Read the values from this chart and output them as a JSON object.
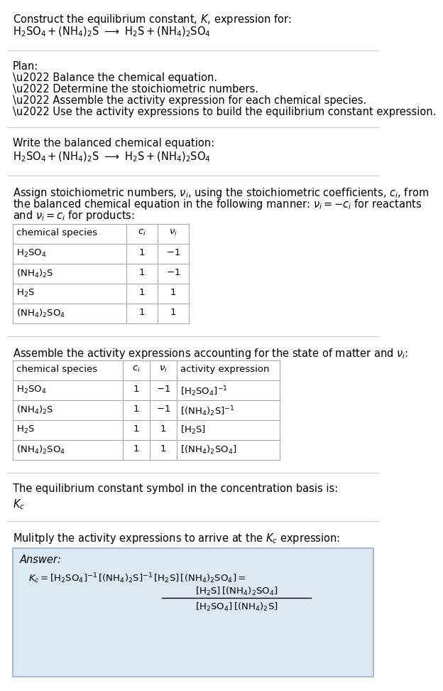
{
  "bg_color": "#ffffff",
  "text_color": "#000000",
  "title_line1": "Construct the equilibrium constant, $K$, expression for:",
  "reaction_line": "$\\mathrm{H_2SO_4 +(NH_4)_2S \\ \\longrightarrow \\ H_2S +(NH_4)_2SO_4}$",
  "plan_header": "Plan:",
  "plan_items": [
    "\\u2022 Balance the chemical equation.",
    "\\u2022 Determine the stoichiometric numbers.",
    "\\u2022 Assemble the activity expression for each chemical species.",
    "\\u2022 Use the activity expressions to build the equilibrium constant expression."
  ],
  "balanced_eq_header": "Write the balanced chemical equation:",
  "balanced_eq": "$\\mathrm{H_2SO_4 +(NH_4)_2S \\ \\longrightarrow \\ H_2S +(NH_4)_2SO_4}$",
  "stoich_text": [
    "Assign stoichiometric numbers, $\\nu_i$, using the stoichiometric coefficients, $c_i$, from",
    "the balanced chemical equation in the following manner: $\\nu_i = -c_i$ for reactants",
    "and $\\nu_i = c_i$ for products:"
  ],
  "table1_headers": [
    "chemical species",
    "$c_i$",
    "$\\nu_i$"
  ],
  "table1_rows": [
    [
      "$\\mathrm{H_2SO_4}$",
      "1",
      "$-1$"
    ],
    [
      "$\\mathrm{(NH_4)_2S}$",
      "1",
      "$-1$"
    ],
    [
      "$\\mathrm{H_2S}$",
      "1",
      "$1$"
    ],
    [
      "$\\mathrm{(NH_4)_2SO_4}$",
      "1",
      "$1$"
    ]
  ],
  "activity_header": "Assemble the activity expressions accounting for the state of matter and $\\nu_i$:",
  "table2_headers": [
    "chemical species",
    "$c_i$",
    "$\\nu_i$",
    "activity expression"
  ],
  "table2_rows": [
    [
      "$\\mathrm{H_2SO_4}$",
      "1",
      "$-1$",
      "$[\\mathrm{H_2SO_4}]^{-1}$"
    ],
    [
      "$\\mathrm{(NH_4)_2S}$",
      "1",
      "$-1$",
      "$[\\mathrm{(NH_4)_2S}]^{-1}$"
    ],
    [
      "$\\mathrm{H_2S}$",
      "1",
      "$1$",
      "$[\\mathrm{H_2S}]$"
    ],
    [
      "$\\mathrm{(NH_4)_2SO_4}$",
      "1",
      "$1$",
      "$[\\mathrm{(NH_4)_2SO_4}]$"
    ]
  ],
  "kc_header": "The equilibrium constant symbol in the concentration basis is:",
  "kc_symbol": "$K_c$",
  "multiply_header": "Mulitply the activity expressions to arrive at the $K_c$ expression:",
  "answer_box_color": "#dde8f5",
  "answer_label": "Answer:",
  "answer_eq_line1": "$K_c = [\\mathrm{H_2SO_4}]^{-1}\\,[\\mathrm{(NH_4)_2S}]^{-1}\\,[\\mathrm{H_2S}]\\,[\\mathrm{(NH_4)_2SO_4}] = $",
  "frac_numer": "$[\\mathrm{H_2S}]\\,[\\mathrm{(NH_4)_2SO_4}]$",
  "frac_denom": "$[\\mathrm{H_2SO_4}]\\,[\\mathrm{(NH_4)_2S}]$",
  "table_border_color": "#aaaaaa",
  "separator_color": "#cccccc"
}
